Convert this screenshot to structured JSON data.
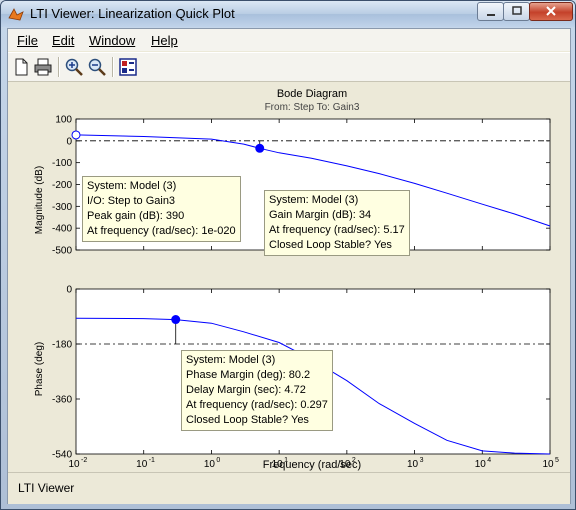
{
  "window": {
    "title": "LTI Viewer: Linearization Quick Plot"
  },
  "menu": {
    "file": "File",
    "edit": "Edit",
    "window": "Window",
    "help": "Help"
  },
  "toolbar": {
    "new": "new-document-icon",
    "print": "print-icon",
    "zoom_in": "zoom-in-icon",
    "zoom_out": "zoom-out-icon",
    "plot_config": "plot-config-icon"
  },
  "plot": {
    "title": "Bode Diagram",
    "subtitle": "From: Step  To: Gain3",
    "xlabel": "Frequency  (rad/sec)",
    "ylabel_mag": "Magnitude (dB)",
    "ylabel_phase": "Phase (deg)"
  },
  "tips": {
    "peak": [
      "System: Model (3)",
      "I/O: Step to Gain3",
      "Peak gain (dB): 390",
      "At frequency (rad/sec): 1e-020"
    ],
    "gm": [
      "System: Model (3)",
      "Gain Margin (dB): 34",
      "At frequency (rad/sec): 5.17",
      "Closed Loop Stable? Yes"
    ],
    "pm": [
      "System: Model (3)",
      "Phase Margin (deg): 80.2",
      "Delay Margin (sec): 4.72",
      "At frequency (rad/sec): 0.297",
      "Closed Loop Stable? Yes"
    ]
  },
  "status": {
    "text": "LTI Viewer"
  },
  "colors": {
    "curve": "#0000ff",
    "tip_bg": "#ffffe1",
    "grid_dash": "#000000"
  },
  "chart_data": [
    {
      "type": "line",
      "title": "Bode Diagram",
      "subtitle": "From: Step  To: Gain3",
      "xlabel": "Frequency  (rad/sec)",
      "ylabel": "Magnitude (dB)",
      "xscale": "log",
      "xlim": [
        0.01,
        100000
      ],
      "ylim": [
        -500,
        100
      ],
      "yticks": [
        100,
        0,
        -100,
        -200,
        -300,
        -400,
        -500
      ],
      "ytick_labels": [
        "100",
        "0",
        "-100",
        "-200",
        "-300",
        "-400",
        "-500"
      ],
      "reference_line_y": 0,
      "series": [
        {
          "x": [
            0.01,
            0.1,
            1,
            3,
            5.17,
            10,
            30,
            100,
            300,
            1000,
            3000,
            10000,
            30000,
            100000
          ],
          "y": [
            27,
            20,
            8,
            -15,
            -34,
            -55,
            -80,
            -115,
            -150,
            -195,
            -240,
            -290,
            -335,
            -390
          ]
        }
      ],
      "markers": [
        {
          "x": 0.01,
          "y": 27,
          "filled": false
        },
        {
          "x": 5.17,
          "y": -34,
          "filled": true
        }
      ]
    },
    {
      "type": "line",
      "xlabel": "Frequency  (rad/sec)",
      "ylabel": "Phase (deg)",
      "xscale": "log",
      "xlim": [
        0.01,
        100000
      ],
      "ylim": [
        -540,
        0
      ],
      "yticks": [
        0,
        -180,
        -360,
        -540
      ],
      "ytick_labels": [
        "0",
        "-180",
        "-360",
        "-540"
      ],
      "xticks": [
        0.01,
        0.1,
        1,
        10,
        100,
        1000,
        10000,
        100000
      ],
      "xtick_bases": [
        "10",
        "10",
        "10",
        "10",
        "10",
        "10",
        "10",
        "10"
      ],
      "xtick_exps": [
        "-2",
        "-1",
        "0",
        "1",
        "2",
        "3",
        "4",
        "5"
      ],
      "reference_line_y": -180,
      "series": [
        {
          "x": [
            0.01,
            0.1,
            0.297,
            1,
            3,
            10,
            30,
            100,
            300,
            1000,
            3000,
            10000,
            30000,
            100000
          ],
          "y": [
            -96,
            -97,
            -100,
            -112,
            -140,
            -175,
            -230,
            -300,
            -375,
            -440,
            -495,
            -530,
            -537,
            -540
          ]
        }
      ],
      "markers": [
        {
          "x": 0.297,
          "y": -100,
          "filled": true
        }
      ]
    }
  ]
}
